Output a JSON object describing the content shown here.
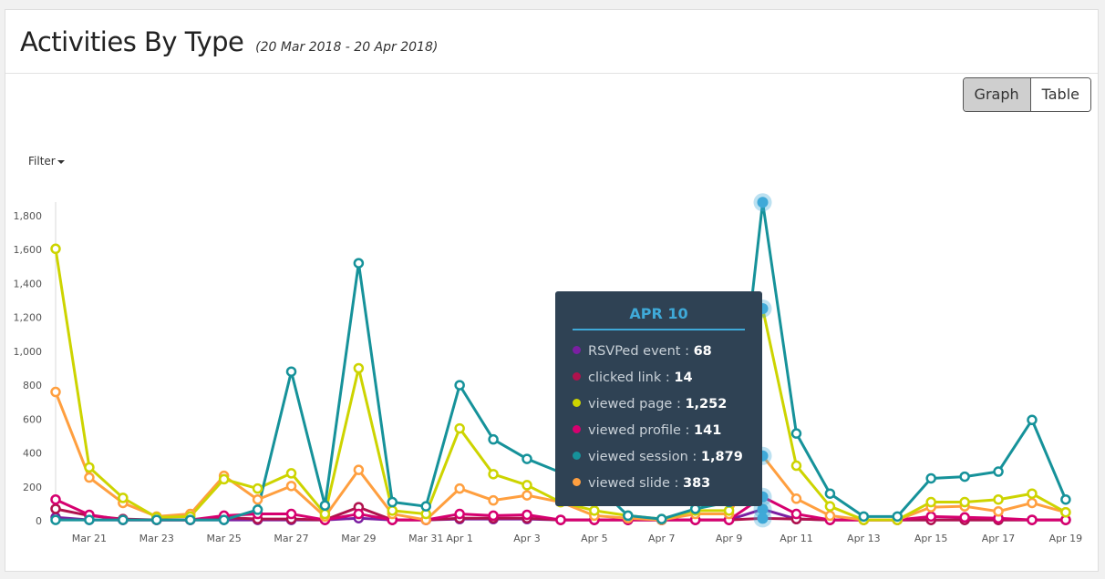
{
  "header": {
    "title": "Activities By Type",
    "subtitle": "(20 Mar 2018 - 20 Apr 2018)"
  },
  "view_toggle": {
    "graph_label": "Graph",
    "table_label": "Table",
    "active": "Graph"
  },
  "filter": {
    "label": "Filter",
    "icon": "caret-down-icon"
  },
  "tooltip": {
    "title": "APR 10",
    "rows": [
      {
        "label": "RSVPed event",
        "value": "68",
        "color": "#7b1fa2"
      },
      {
        "label": "clicked link",
        "value": "14",
        "color": "#b0124d"
      },
      {
        "label": "viewed page",
        "value": "1,252",
        "color": "#cdd400"
      },
      {
        "label": "viewed profile",
        "value": "141",
        "color": "#d6006f"
      },
      {
        "label": "viewed session",
        "value": "1,879",
        "color": "#16929a"
      },
      {
        "label": "viewed slide",
        "value": "383",
        "color": "#ff9f3f"
      }
    ]
  },
  "chart_data": {
    "type": "line",
    "ylim": [
      0,
      1880
    ],
    "yticks": [
      0,
      200,
      400,
      600,
      800,
      1000,
      1200,
      1400,
      1600,
      1800
    ],
    "ytick_labels": [
      "0",
      "200",
      "400",
      "600",
      "800",
      "1,000",
      "1,200",
      "1,400",
      "1,600",
      "1,800"
    ],
    "x": [
      "Mar 20",
      "Mar 21",
      "Mar 22",
      "Mar 23",
      "Mar 24",
      "Mar 25",
      "Mar 26",
      "Mar 27",
      "Mar 28",
      "Mar 29",
      "Mar 30",
      "Mar 31",
      "Apr 1",
      "Apr 2",
      "Apr 3",
      "Apr 4",
      "Apr 5",
      "Apr 6",
      "Apr 7",
      "Apr 8",
      "Apr 9",
      "Apr 10",
      "Apr 11",
      "Apr 12",
      "Apr 13",
      "Apr 14",
      "Apr 15",
      "Apr 16",
      "Apr 17",
      "Apr 18",
      "Apr 19"
    ],
    "xtick_labels": [
      "Mar 21",
      "Mar 23",
      "Mar 25",
      "Mar 27",
      "Mar 29",
      "Mar 31",
      "Apr 1",
      "Apr 3",
      "Apr 5",
      "Apr 7",
      "Apr 9",
      "Apr 11",
      "Apr 13",
      "Apr 15",
      "Apr 17",
      "Apr 19"
    ],
    "highlight_index": 21,
    "series": [
      {
        "name": "RSVPed event",
        "color": "#7b1fa2",
        "values": [
          20,
          5,
          5,
          5,
          5,
          5,
          5,
          5,
          5,
          15,
          5,
          5,
          10,
          10,
          10,
          5,
          5,
          5,
          5,
          5,
          5,
          68,
          10,
          5,
          5,
          5,
          5,
          5,
          5,
          5,
          5
        ]
      },
      {
        "name": "clicked link",
        "color": "#b0124d",
        "values": [
          70,
          30,
          10,
          5,
          5,
          20,
          10,
          10,
          5,
          80,
          5,
          5,
          15,
          15,
          15,
          5,
          5,
          5,
          5,
          5,
          5,
          14,
          10,
          5,
          5,
          5,
          5,
          5,
          5,
          5,
          5
        ]
      },
      {
        "name": "viewed page",
        "color": "#cdd400",
        "values": [
          1605,
          315,
          135,
          20,
          25,
          245,
          190,
          280,
          40,
          900,
          60,
          40,
          545,
          275,
          210,
          110,
          60,
          30,
          10,
          60,
          60,
          1252,
          325,
          85,
          5,
          5,
          110,
          110,
          125,
          160,
          50
        ]
      },
      {
        "name": "viewed profile",
        "color": "#d6006f",
        "values": [
          125,
          35,
          5,
          5,
          5,
          30,
          40,
          40,
          5,
          40,
          5,
          5,
          40,
          30,
          35,
          5,
          5,
          5,
          5,
          5,
          5,
          141,
          40,
          5,
          5,
          5,
          25,
          20,
          15,
          5,
          5
        ]
      },
      {
        "name": "viewed session",
        "color": "#16929a",
        "values": [
          5,
          5,
          5,
          5,
          5,
          5,
          65,
          880,
          90,
          1520,
          110,
          85,
          800,
          480,
          365,
          285,
          220,
          30,
          10,
          70,
          110,
          1879,
          515,
          160,
          25,
          25,
          250,
          260,
          290,
          595,
          125
        ]
      },
      {
        "name": "viewed slide",
        "color": "#ff9f3f",
        "values": [
          760,
          255,
          105,
          25,
          40,
          265,
          125,
          205,
          25,
          300,
          40,
          5,
          190,
          120,
          150,
          110,
          30,
          15,
          5,
          40,
          40,
          383,
          130,
          30,
          5,
          5,
          80,
          85,
          55,
          105,
          50
        ]
      }
    ]
  }
}
